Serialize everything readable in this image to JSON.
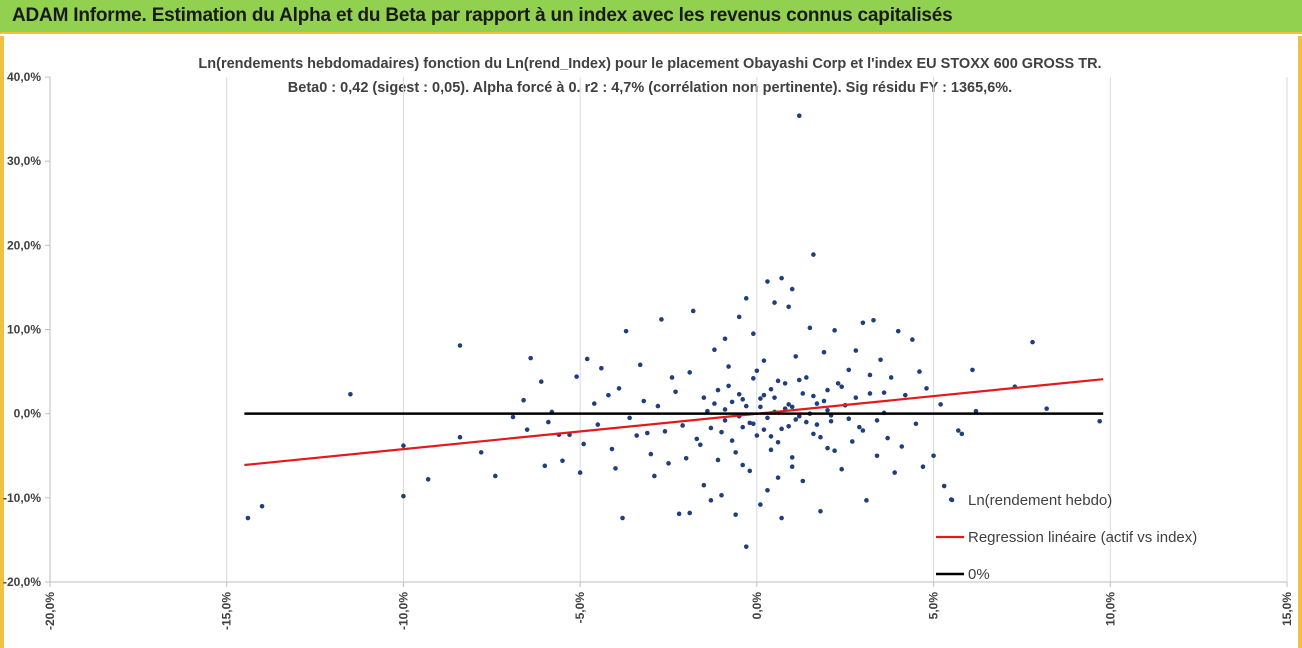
{
  "header": {
    "title": "ADAM Informe. Estimation du Alpha et du Beta par rapport à un index avec les revenus connus capitalisés"
  },
  "chart_data": {
    "type": "scatter",
    "title": "Ln(rendements hebdomadaires) fonction du Ln(rend_Index) pour le placement Obayashi Corp et l'index EU STOXX 600 GROSS TR.",
    "subtitle": "Beta0 : 0,42  (sigest : 0,05).  Alpha forcé à 0. r2 : 4,7% (corrélation non pertinente). Sig résidu FY : 1365,6%.",
    "xlim": [
      -20,
      15
    ],
    "ylim": [
      -20,
      40
    ],
    "x_ticks": [
      "-20,0%",
      "-15,0%",
      "-10,0%",
      "-5,0%",
      "0,0%",
      "5,0%",
      "10,0%",
      "15,0%"
    ],
    "y_ticks": [
      "-20,0%",
      "-10,0%",
      "0,0%",
      "10,0%",
      "20,0%",
      "30,0%",
      "40,0%"
    ],
    "grid": "vertical",
    "legend_position": "bottom-right",
    "series": [
      {
        "name": "Ln(rendement hebdo)",
        "kind": "scatter",
        "color": "#1f3f7a",
        "points": [
          [
            -14.4,
            -12.4
          ],
          [
            -14.0,
            -11.0
          ],
          [
            -11.5,
            2.3
          ],
          [
            -10.0,
            -9.8
          ],
          [
            -10.0,
            -3.8
          ],
          [
            -9.3,
            -7.8
          ],
          [
            -8.4,
            8.1
          ],
          [
            -8.4,
            -2.8
          ],
          [
            -7.8,
            -4.6
          ],
          [
            -7.4,
            -7.4
          ],
          [
            -6.9,
            -0.4
          ],
          [
            -6.6,
            1.6
          ],
          [
            -6.5,
            -1.9
          ],
          [
            -6.4,
            6.6
          ],
          [
            -6.1,
            3.8
          ],
          [
            -6.0,
            -6.2
          ],
          [
            -5.8,
            0.2
          ],
          [
            -5.6,
            -2.5
          ],
          [
            -5.5,
            -5.6
          ],
          [
            -5.3,
            -2.5
          ],
          [
            -5.1,
            4.4
          ],
          [
            -5.0,
            -7.0
          ],
          [
            -4.8,
            6.5
          ],
          [
            -4.5,
            -1.3
          ],
          [
            -4.4,
            5.4
          ],
          [
            -4.2,
            2.2
          ],
          [
            -4.0,
            -6.5
          ],
          [
            -3.8,
            -12.4
          ],
          [
            -3.7,
            9.8
          ],
          [
            -3.4,
            -2.6
          ],
          [
            -3.2,
            1.5
          ],
          [
            -3.0,
            -4.8
          ],
          [
            -2.9,
            -7.4
          ],
          [
            -2.6,
            -2.1
          ],
          [
            -2.7,
            11.2
          ],
          [
            -2.4,
            4.3
          ],
          [
            -2.2,
            -11.9
          ],
          [
            -2.0,
            -5.3
          ],
          [
            -1.9,
            -11.8
          ],
          [
            -1.8,
            12.2
          ],
          [
            -1.6,
            -3.7
          ],
          [
            -1.5,
            -8.5
          ],
          [
            -1.3,
            -10.3
          ],
          [
            -1.2,
            1.2
          ],
          [
            -1.1,
            -5.5
          ],
          [
            -1.0,
            -9.7
          ],
          [
            -0.9,
            8.9
          ],
          [
            -0.9,
            -0.8
          ],
          [
            -0.8,
            5.6
          ],
          [
            -0.7,
            -3.2
          ],
          [
            -0.6,
            -12.0
          ],
          [
            -0.5,
            11.5
          ],
          [
            -0.5,
            2.3
          ],
          [
            -0.4,
            -6.1
          ],
          [
            -0.3,
            13.7
          ],
          [
            -0.3,
            -15.8
          ],
          [
            -0.2,
            -1.1
          ],
          [
            -0.1,
            9.5
          ],
          [
            -0.1,
            4.2
          ],
          [
            0.0,
            -2.6
          ],
          [
            0.1,
            -10.8
          ],
          [
            0.1,
            0.8
          ],
          [
            0.2,
            6.3
          ],
          [
            0.3,
            -9.1
          ],
          [
            0.3,
            15.7
          ],
          [
            0.4,
            -4.3
          ],
          [
            0.5,
            13.2
          ],
          [
            0.5,
            1.9
          ],
          [
            0.6,
            -7.6
          ],
          [
            0.7,
            -12.4
          ],
          [
            0.7,
            16.1
          ],
          [
            0.8,
            3.6
          ],
          [
            0.9,
            -1.5
          ],
          [
            0.9,
            12.7
          ],
          [
            1.0,
            -5.2
          ],
          [
            1.0,
            14.8
          ],
          [
            1.1,
            6.8
          ],
          [
            1.2,
            -0.3
          ],
          [
            1.2,
            35.4
          ],
          [
            1.3,
            -8.0
          ],
          [
            1.4,
            4.3
          ],
          [
            1.5,
            10.2
          ],
          [
            1.6,
            -2.4
          ],
          [
            1.6,
            18.9
          ],
          [
            1.7,
            1.2
          ],
          [
            1.8,
            -11.6
          ],
          [
            1.9,
            7.3
          ],
          [
            2.0,
            -4.1
          ],
          [
            2.0,
            2.8
          ],
          [
            2.1,
            -0.9
          ],
          [
            2.2,
            9.9
          ],
          [
            2.3,
            3.6
          ],
          [
            2.4,
            -6.6
          ],
          [
            2.5,
            1.0
          ],
          [
            2.6,
            5.2
          ],
          [
            2.7,
            -3.3
          ],
          [
            2.8,
            7.5
          ],
          [
            2.9,
            -1.6
          ],
          [
            3.0,
            10.8
          ],
          [
            3.1,
            -10.3
          ],
          [
            3.2,
            2.4
          ],
          [
            3.3,
            11.1
          ],
          [
            3.4,
            -5.0
          ],
          [
            3.5,
            6.4
          ],
          [
            3.6,
            0.1
          ],
          [
            3.7,
            -2.9
          ],
          [
            3.8,
            4.3
          ],
          [
            3.9,
            -7.0
          ],
          [
            4.0,
            9.8
          ],
          [
            4.1,
            -3.9
          ],
          [
            4.2,
            2.2
          ],
          [
            4.4,
            8.8
          ],
          [
            4.5,
            -1.2
          ],
          [
            4.6,
            5.0
          ],
          [
            4.7,
            -6.3
          ],
          [
            4.8,
            3.0
          ],
          [
            5.0,
            -5.0
          ],
          [
            5.2,
            1.1
          ],
          [
            5.3,
            -8.6
          ],
          [
            5.5,
            -10.2
          ],
          [
            5.7,
            -2.0
          ],
          [
            5.8,
            -2.4
          ],
          [
            6.1,
            5.2
          ],
          [
            6.2,
            0.3
          ],
          [
            7.3,
            3.2
          ],
          [
            7.8,
            8.5
          ],
          [
            8.2,
            0.6
          ],
          [
            9.7,
            -0.9
          ],
          [
            -5.9,
            -1.0
          ],
          [
            -4.9,
            -3.6
          ],
          [
            -4.6,
            1.2
          ],
          [
            -4.1,
            -4.2
          ],
          [
            -3.9,
            3.0
          ],
          [
            -3.6,
            -0.5
          ],
          [
            -3.3,
            5.8
          ],
          [
            -3.1,
            -2.3
          ],
          [
            -2.8,
            0.9
          ],
          [
            -2.5,
            -5.9
          ],
          [
            -2.3,
            2.6
          ],
          [
            -2.1,
            -1.4
          ],
          [
            -1.9,
            4.9
          ],
          [
            -1.7,
            -3.0
          ],
          [
            -1.4,
            0.3
          ],
          [
            -1.2,
            7.6
          ],
          [
            -1.0,
            -2.2
          ],
          [
            -0.8,
            3.3
          ],
          [
            -0.6,
            -4.6
          ],
          [
            -0.4,
            1.7
          ],
          [
            -0.2,
            -6.8
          ],
          [
            0.0,
            5.1
          ],
          [
            0.2,
            -1.9
          ],
          [
            0.4,
            2.9
          ],
          [
            0.6,
            -3.4
          ],
          [
            0.8,
            0.6
          ],
          [
            1.0,
            -6.3
          ],
          [
            1.2,
            4.0
          ],
          [
            1.4,
            -1.0
          ],
          [
            1.6,
            2.1
          ],
          [
            1.8,
            -2.8
          ],
          [
            2.0,
            0.4
          ],
          [
            2.2,
            -4.4
          ],
          [
            2.4,
            3.2
          ],
          [
            2.6,
            -0.6
          ],
          [
            2.8,
            1.9
          ],
          [
            3.0,
            -2.0
          ],
          [
            3.2,
            4.6
          ],
          [
            3.4,
            -0.8
          ],
          [
            3.6,
            2.5
          ],
          [
            -0.9,
            0.5
          ],
          [
            -0.7,
            1.4
          ],
          [
            -0.5,
            -0.3
          ],
          [
            -0.3,
            0.9
          ],
          [
            -0.1,
            -1.2
          ],
          [
            0.1,
            1.8
          ],
          [
            0.3,
            -0.5
          ],
          [
            0.5,
            0.2
          ],
          [
            0.7,
            -1.8
          ],
          [
            0.9,
            1.1
          ],
          [
            1.1,
            -0.7
          ],
          [
            1.3,
            2.4
          ],
          [
            1.5,
            0.0
          ],
          [
            1.7,
            -1.3
          ],
          [
            1.9,
            1.5
          ],
          [
            2.1,
            -0.2
          ],
          [
            -1.5,
            1.9
          ],
          [
            -1.3,
            -1.7
          ],
          [
            -1.1,
            2.8
          ],
          [
            0.6,
            3.9
          ],
          [
            0.4,
            -2.7
          ],
          [
            0.2,
            2.2
          ],
          [
            -0.4,
            -1.6
          ],
          [
            1.0,
            0.8
          ]
        ]
      },
      {
        "name": "Regression linéaire (actif vs index)",
        "kind": "line",
        "color": "#e31a1c",
        "points": [
          [
            -14.5,
            -6.1
          ],
          [
            9.8,
            4.1
          ]
        ]
      },
      {
        "name": "0%",
        "kind": "line",
        "color": "#000000",
        "points": [
          [
            -14.5,
            0
          ],
          [
            9.8,
            0
          ]
        ]
      }
    ]
  }
}
